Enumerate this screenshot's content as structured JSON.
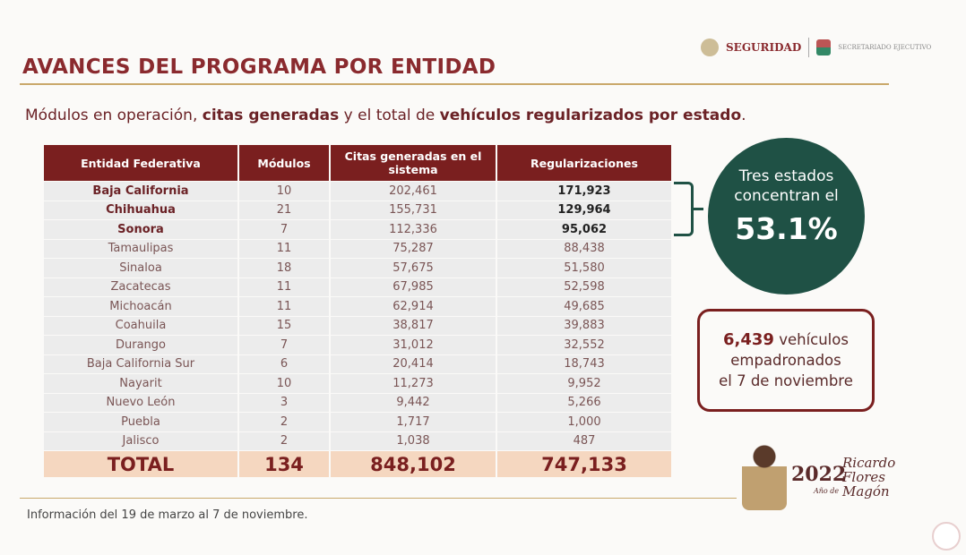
{
  "header": {
    "title": "AVANCES DEL PROGRAMA POR ENTIDAD",
    "logo_seguridad": "SEGURIDAD",
    "logo_secretariado": "SECRETARIADO EJECUTIVO"
  },
  "subtitle": {
    "p1": "Módulos en operación, ",
    "b1": "citas generadas",
    "p2": " y el total de ",
    "b2": "vehículos regularizados por estado",
    "p3": "."
  },
  "table": {
    "headers": [
      "Entidad Federativa",
      "Módulos",
      "Citas generadas en el sistema",
      "Regularizaciones"
    ],
    "rows": [
      [
        "Baja California",
        "10",
        "202,461",
        "171,923"
      ],
      [
        "Chihuahua",
        "21",
        "155,731",
        "129,964"
      ],
      [
        "Sonora",
        "7",
        "112,336",
        "95,062"
      ],
      [
        "Tamaulipas",
        "11",
        "75,287",
        "88,438"
      ],
      [
        "Sinaloa",
        "18",
        "57,675",
        "51,580"
      ],
      [
        "Zacatecas",
        "11",
        "67,985",
        "52,598"
      ],
      [
        "Michoacán",
        "11",
        "62,914",
        "49,685"
      ],
      [
        "Coahuila",
        "15",
        "38,817",
        "39,883"
      ],
      [
        "Durango",
        "7",
        "31,012",
        "32,552"
      ],
      [
        "Baja California Sur",
        "6",
        "20,414",
        "18,743"
      ],
      [
        "Nayarit",
        "10",
        "11,273",
        "9,952"
      ],
      [
        "Nuevo León",
        "3",
        "9,442",
        "5,266"
      ],
      [
        "Puebla",
        "2",
        "1,717",
        "1,000"
      ],
      [
        "Jalisco",
        "2",
        "1,038",
        "487"
      ]
    ],
    "total": [
      "TOTAL",
      "134",
      "848,102",
      "747,133"
    ]
  },
  "callout": {
    "text": "Tres estados concentran el",
    "value": "53.1%"
  },
  "box": {
    "value": "6,439",
    "l1": " vehículos",
    "l2": "empadronados",
    "l3": "el 7 de noviembre"
  },
  "footer": {
    "note": "Información del 19 de marzo al 7 de noviembre.",
    "year": "2022",
    "year_sub": "Año de",
    "name": "Ricardo Flores Magón"
  },
  "colors": {
    "maroon": "#7a1f1f",
    "green": "#1f5145",
    "total_bg": "#f5d7c0"
  }
}
